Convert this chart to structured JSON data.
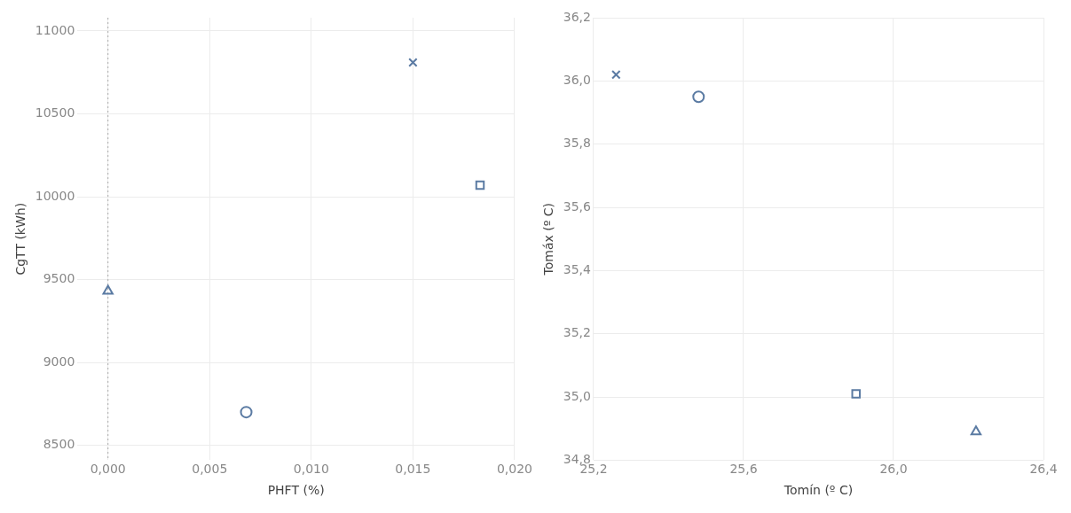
{
  "chart_data": [
    {
      "type": "scatter",
      "xlabel": "PHFT (%)",
      "ylabel": "CgTT (kWh)",
      "xlim": [
        -0.0015,
        0.02
      ],
      "xticks": [
        {
          "value": 0,
          "label": "0,000"
        },
        {
          "value": 0.005,
          "label": "0,005"
        },
        {
          "value": 0.01,
          "label": "0,010"
        },
        {
          "value": 0.015,
          "label": "0,015"
        },
        {
          "value": 0.02,
          "label": "0,020"
        }
      ],
      "ylim": [
        8410,
        11080
      ],
      "yticks": [
        8500,
        9000,
        9500,
        10000,
        10500,
        11000
      ],
      "grid": true,
      "ref_lines": [
        {
          "axis": "x",
          "value": 0,
          "line_style": "dotted",
          "color": "#aaaaaa"
        }
      ],
      "series": [
        {
          "color": "#5b7ba3",
          "marker": "triangle",
          "x": [
            0
          ],
          "values": [
            9430
          ]
        },
        {
          "color": "#5b7ba3",
          "marker": "circle",
          "x": [
            0.0068
          ],
          "values": [
            8700
          ]
        },
        {
          "color": "#5b7ba3",
          "marker": "cross",
          "x": [
            0.015
          ],
          "values": [
            10810
          ]
        },
        {
          "color": "#5b7ba3",
          "marker": "square",
          "x": [
            0.0183
          ],
          "values": [
            10070
          ]
        }
      ]
    },
    {
      "type": "scatter",
      "xlabel": "Tomín (º C)",
      "ylabel": "Tomáx (º C)",
      "xlim": [
        25.2,
        26.4
      ],
      "xticks": [
        {
          "value": 25.2,
          "label": "25,2"
        },
        {
          "value": 25.6,
          "label": "25,6"
        },
        {
          "value": 26.0,
          "label": "26,0"
        },
        {
          "value": 26.4,
          "label": "26,4"
        }
      ],
      "ylim": [
        34.8,
        36.2
      ],
      "yticks": [
        {
          "value": 34.8,
          "label": "34,8"
        },
        {
          "value": 35.0,
          "label": "35,0"
        },
        {
          "value": 35.2,
          "label": "35,2"
        },
        {
          "value": 35.4,
          "label": "35,4"
        },
        {
          "value": 35.6,
          "label": "35,6"
        },
        {
          "value": 35.8,
          "label": "35,8"
        },
        {
          "value": 36.0,
          "label": "36,0"
        },
        {
          "value": 36.2,
          "label": "36,2"
        }
      ],
      "grid": true,
      "series": [
        {
          "color": "#5b7ba3",
          "marker": "cross",
          "x": [
            25.26
          ],
          "values": [
            36.02
          ]
        },
        {
          "color": "#5b7ba3",
          "marker": "circle",
          "x": [
            25.48
          ],
          "values": [
            35.95
          ]
        },
        {
          "color": "#5b7ba3",
          "marker": "square",
          "x": [
            25.9
          ],
          "values": [
            35.01
          ]
        },
        {
          "color": "#5b7ba3",
          "marker": "triangle",
          "x": [
            26.22
          ],
          "values": [
            34.89
          ]
        }
      ]
    }
  ]
}
